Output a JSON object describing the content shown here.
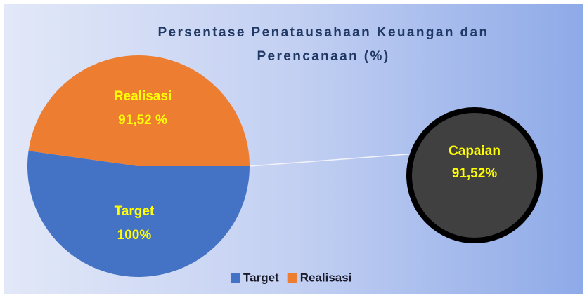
{
  "chart_data": {
    "type": "pie",
    "title": "Persentase Penatausahaan Keuangan dan Perencanaan (%)",
    "categories": [
      "Target",
      "Realisasi"
    ],
    "values": [
      100,
      91.52
    ],
    "value_labels": [
      "100%",
      "91,52 %"
    ],
    "colors": [
      "#4472c4",
      "#ed7d31"
    ],
    "legend": "bottom",
    "annotation": {
      "text": "Capaian",
      "value": 91.52,
      "label": "91,52%"
    }
  }
}
